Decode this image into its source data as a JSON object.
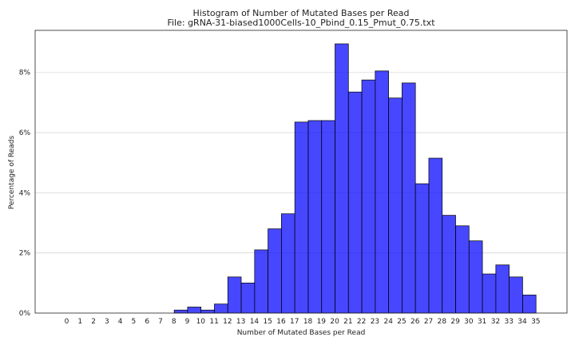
{
  "chart_data": {
    "type": "bar",
    "title": "Histogram of Number of Mutated Bases per Read",
    "subtitle": "File: gRNA-31-biased1000Cells-10_Pbind_0.15_Pmut_0.75.txt",
    "xlabel": "Number of Mutated Bases per Read",
    "ylabel": "Percentage of Reads",
    "categories": [
      "0",
      "1",
      "2",
      "3",
      "4",
      "5",
      "6",
      "7",
      "8",
      "9",
      "10",
      "11",
      "12",
      "13",
      "14",
      "15",
      "16",
      "17",
      "18",
      "19",
      "20",
      "21",
      "22",
      "23",
      "24",
      "25",
      "26",
      "27",
      "28",
      "29",
      "30",
      "31",
      "32",
      "33",
      "34",
      "35"
    ],
    "values": [
      0,
      0,
      0,
      0,
      0,
      0,
      0,
      0,
      0,
      0.1,
      0.2,
      0.1,
      0.3,
      1.2,
      1.0,
      2.1,
      2.8,
      3.3,
      6.35,
      6.4,
      6.4,
      8.95,
      7.35,
      7.75,
      8.05,
      7.15,
      7.65,
      4.3,
      5.15,
      3.25,
      2.9,
      2.4,
      1.3,
      1.6,
      1.2,
      0.6
    ],
    "y_ticks": [
      0,
      2,
      4,
      6,
      8
    ],
    "y_tick_labels": [
      "0%",
      "2%",
      "4%",
      "6%",
      "8%"
    ],
    "ylim": [
      0,
      9.4
    ],
    "grid": "horizontal",
    "bar_color": "#0000ff",
    "edge_color": "#000000"
  }
}
